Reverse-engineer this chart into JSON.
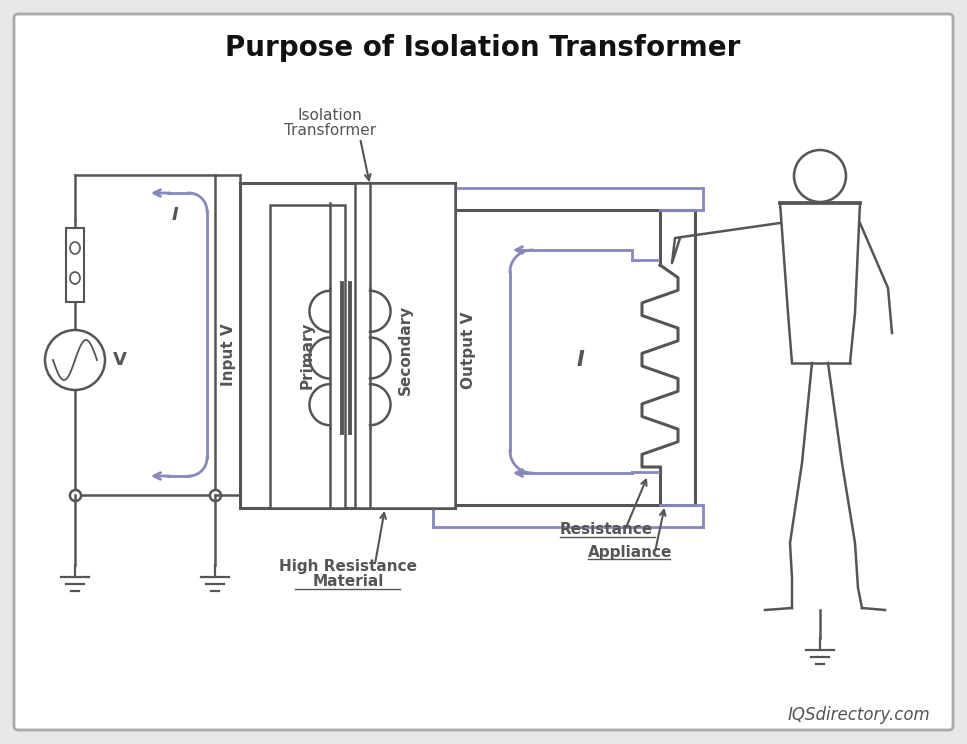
{
  "title": "Purpose of Isolation Transformer",
  "bg_color": "#e8e8e8",
  "panel_color": "#ffffff",
  "line_color": "#555555",
  "blue_color": "#8888bb",
  "credit": "IQSdirectory.com",
  "input_v_label": "Input V",
  "primary_label": "Primary",
  "secondary_label": "Secondary",
  "output_v_label": "Output V",
  "isolation_label1": "Isolation",
  "isolation_label2": "Transformer",
  "high_res_label1": "High Resistance",
  "high_res_label2": "Material",
  "resistance_label": "Resistance",
  "appliance_label": "Appliance",
  "i_label": "I",
  "v_label": "V",
  "title_fontsize": 20,
  "label_fontsize": 11,
  "rotlabel_fontsize": 11,
  "lw": 1.8,
  "lw_thick": 2.2
}
